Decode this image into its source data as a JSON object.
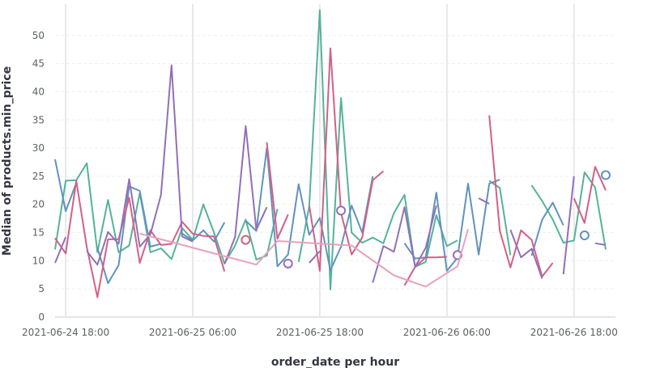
{
  "chart_data": {
    "type": "line",
    "xlabel": "order_date per hour",
    "ylabel": "Median of products.min_price",
    "ylim": [
      0,
      55
    ],
    "yticks": [
      0,
      5,
      10,
      15,
      20,
      25,
      30,
      35,
      40,
      45,
      50
    ],
    "xlim": [
      "2021-06-24 17:00",
      "2021-06-26 21:00"
    ],
    "xticks": [
      {
        "at": "2021-06-24 18:00",
        "label": "2021-06-24 18:00"
      },
      {
        "at": "2021-06-25 06:00",
        "label": "2021-06-25 06:00"
      },
      {
        "at": "2021-06-25 18:00",
        "label": "2021-06-25 18:00"
      },
      {
        "at": "2021-06-26 06:00",
        "label": "2021-06-26 06:00"
      },
      {
        "at": "2021-06-26 18:00",
        "label": "2021-06-26 18:00"
      }
    ],
    "grid": {
      "horizontal": true,
      "vertical": "day-boundaries"
    },
    "legend": "none",
    "series": [
      {
        "color": "#54b399",
        "values": [
          [
            "2021-06-24 17:00",
            12
          ],
          [
            "2021-06-24 18:00",
            24.2
          ],
          [
            "2021-06-24 19:00",
            24.3
          ],
          [
            "2021-06-24 20:00",
            27.3
          ],
          [
            "2021-06-24 21:00",
            11.5
          ],
          [
            "2021-06-24 22:00",
            20.8
          ],
          [
            "2021-06-24 23:00",
            11.5
          ],
          [
            "2021-06-25 00:00",
            12.7
          ],
          [
            "2021-06-25 01:00",
            22
          ],
          [
            "2021-06-25 02:00",
            11.5
          ],
          [
            "2021-06-25 03:00",
            12.2
          ],
          [
            "2021-06-25 04:00",
            10.3
          ],
          [
            "2021-06-25 05:00",
            15.8
          ],
          [
            "2021-06-25 06:00",
            13.7
          ],
          [
            "2021-06-25 07:00",
            20
          ],
          [
            "2021-06-25 08:00",
            15
          ],
          [
            "2021-06-25 09:00",
            9.5
          ],
          [
            "2021-06-25 10:00",
            12.7
          ],
          [
            "2021-06-25 11:00",
            17.3
          ],
          [
            "2021-06-25 12:00",
            10.2
          ],
          [
            "2021-06-25 13:00",
            10.9
          ],
          [
            "2021-06-25 14:00",
            19.2
          ],
          [
            "2021-06-25 15:00",
            null
          ],
          [
            "2021-06-25 16:00",
            9.8
          ],
          [
            "2021-06-25 17:00",
            19.6
          ],
          [
            "2021-06-25 18:00",
            54.5
          ],
          [
            "2021-06-25 19:00",
            4.9
          ],
          [
            "2021-06-25 20:00",
            38.9
          ],
          [
            "2021-06-25 21:00",
            15
          ],
          [
            "2021-06-25 22:00",
            13.2
          ],
          [
            "2021-06-25 23:00",
            14.1
          ],
          [
            "2021-06-26 00:00",
            13.1
          ],
          [
            "2021-06-26 01:00",
            18.5
          ],
          [
            "2021-06-26 02:00",
            21.7
          ],
          [
            "2021-06-26 03:00",
            8.9
          ],
          [
            "2021-06-26 04:00",
            9.8
          ],
          [
            "2021-06-26 05:00",
            18.1
          ],
          [
            "2021-06-26 06:00",
            12.6
          ],
          [
            "2021-06-26 07:00",
            13.6
          ],
          [
            "2021-06-26 08:00",
            null
          ],
          [
            "2021-06-26 09:00",
            null
          ],
          [
            "2021-06-26 10:00",
            24.2
          ],
          [
            "2021-06-26 11:00",
            22.9
          ],
          [
            "2021-06-26 12:00",
            11
          ],
          [
            "2021-06-26 13:00",
            null
          ],
          [
            "2021-06-26 14:00",
            23.4
          ],
          [
            "2021-06-26 15:00",
            20.6
          ],
          [
            "2021-06-26 16:00",
            17.3
          ],
          [
            "2021-06-26 17:00",
            13.2
          ],
          [
            "2021-06-26 18:00",
            13.6
          ],
          [
            "2021-06-26 19:00",
            25.7
          ],
          [
            "2021-06-26 20:00",
            23
          ],
          [
            "2021-06-26 21:00",
            12
          ]
        ]
      },
      {
        "color": "#6092c0",
        "values": [
          [
            "2021-06-24 17:00",
            28
          ],
          [
            "2021-06-24 18:00",
            18.8
          ],
          [
            "2021-06-24 19:00",
            23.8
          ],
          [
            "2021-06-24 20:00",
            null
          ],
          [
            "2021-06-24 21:00",
            12.3
          ],
          [
            "2021-06-24 22:00",
            6
          ],
          [
            "2021-06-24 23:00",
            9.2
          ],
          [
            "2021-06-25 00:00",
            23.2
          ],
          [
            "2021-06-25 01:00",
            22.4
          ],
          [
            "2021-06-25 02:00",
            12.5
          ],
          [
            "2021-06-25 03:00",
            13
          ],
          [
            "2021-06-25 04:00",
            null
          ],
          [
            "2021-06-25 05:00",
            14.8
          ],
          [
            "2021-06-25 06:00",
            13.6
          ],
          [
            "2021-06-25 07:00",
            15.4
          ],
          [
            "2021-06-25 08:00",
            13.4
          ],
          [
            "2021-06-25 09:00",
            16.8
          ],
          [
            "2021-06-25 10:00",
            null
          ],
          [
            "2021-06-25 11:00",
            17.1
          ],
          [
            "2021-06-25 12:00",
            15.3
          ],
          [
            "2021-06-25 13:00",
            30
          ],
          [
            "2021-06-25 14:00",
            9
          ],
          [
            "2021-06-25 15:00",
            11.1
          ],
          [
            "2021-06-25 16:00",
            23.6
          ],
          [
            "2021-06-25 17:00",
            14.6
          ],
          [
            "2021-06-25 18:00",
            17.6
          ],
          [
            "2021-06-25 19:00",
            8.3
          ],
          [
            "2021-06-25 20:00",
            12.5
          ],
          [
            "2021-06-25 21:00",
            19.8
          ],
          [
            "2021-06-25 22:00",
            15
          ],
          [
            "2021-06-25 23:00",
            25
          ],
          [
            "2021-06-26 00:00",
            null
          ],
          [
            "2021-06-26 01:00",
            null
          ],
          [
            "2021-06-26 02:00",
            13.1
          ],
          [
            "2021-06-26 03:00",
            10.4
          ],
          [
            "2021-06-26 04:00",
            10.6
          ],
          [
            "2021-06-26 05:00",
            22.1
          ],
          [
            "2021-06-26 06:00",
            8.2
          ],
          [
            "2021-06-26 07:00",
            10.5
          ],
          [
            "2021-06-26 08:00",
            23.7
          ],
          [
            "2021-06-26 09:00",
            11.1
          ],
          [
            "2021-06-26 10:00",
            23.7
          ],
          [
            "2021-06-26 11:00",
            24.4
          ],
          [
            "2021-06-26 12:00",
            null
          ],
          [
            "2021-06-26 13:00",
            null
          ],
          [
            "2021-06-26 14:00",
            10.9
          ],
          [
            "2021-06-26 15:00",
            17.3
          ],
          [
            "2021-06-26 16:00",
            20.3
          ],
          [
            "2021-06-26 17:00",
            16.3
          ],
          [
            "2021-06-26 18:00",
            null
          ],
          [
            "2021-06-26 19:00",
            14.5
          ],
          [
            "2021-06-26 20:00",
            null
          ],
          [
            "2021-06-26 21:00",
            25.2
          ]
        ]
      },
      {
        "color": "#d36086",
        "values": [
          [
            "2021-06-24 17:00",
            14
          ],
          [
            "2021-06-24 18:00",
            11.3
          ],
          [
            "2021-06-24 19:00",
            24.2
          ],
          [
            "2021-06-24 20:00",
            12.4
          ],
          [
            "2021-06-24 21:00",
            3.5
          ],
          [
            "2021-06-24 22:00",
            13.8
          ],
          [
            "2021-06-24 23:00",
            13.8
          ],
          [
            "2021-06-25 00:00",
            21.2
          ],
          [
            "2021-06-25 01:00",
            9.6
          ],
          [
            "2021-06-25 02:00",
            15.4
          ],
          [
            "2021-06-25 03:00",
            12.8
          ],
          [
            "2021-06-25 04:00",
            13
          ],
          [
            "2021-06-25 05:00",
            16.9
          ],
          [
            "2021-06-25 06:00",
            14.8
          ],
          [
            "2021-06-25 07:00",
            14.4
          ],
          [
            "2021-06-25 08:00",
            14.3
          ],
          [
            "2021-06-25 09:00",
            8.1
          ],
          [
            "2021-06-25 10:00",
            null
          ],
          [
            "2021-06-25 11:00",
            13.7
          ],
          [
            "2021-06-25 12:00",
            null
          ],
          [
            "2021-06-25 13:00",
            31
          ],
          [
            "2021-06-25 14:00",
            13.9
          ],
          [
            "2021-06-25 15:00",
            18.2
          ],
          [
            "2021-06-25 16:00",
            null
          ],
          [
            "2021-06-25 17:00",
            19.8
          ],
          [
            "2021-06-25 18:00",
            8.2
          ],
          [
            "2021-06-25 19:00",
            47.7
          ],
          [
            "2021-06-25 20:00",
            18.5
          ],
          [
            "2021-06-25 21:00",
            11.1
          ],
          [
            "2021-06-25 22:00",
            14.1
          ],
          [
            "2021-06-25 23:00",
            24.3
          ],
          [
            "2021-06-26 00:00",
            25.9
          ],
          [
            "2021-06-26 01:00",
            null
          ],
          [
            "2021-06-26 02:00",
            5.6
          ],
          [
            "2021-06-26 03:00",
            8.9
          ],
          [
            "2021-06-26 04:00",
            10.6
          ],
          [
            "2021-06-26 05:00",
            10.6
          ],
          [
            "2021-06-26 06:00",
            10.7
          ],
          [
            "2021-06-26 07:00",
            null
          ],
          [
            "2021-06-26 08:00",
            null
          ],
          [
            "2021-06-26 09:00",
            null
          ],
          [
            "2021-06-26 10:00",
            35.8
          ],
          [
            "2021-06-26 11:00",
            15.3
          ],
          [
            "2021-06-26 12:00",
            8.8
          ],
          [
            "2021-06-26 13:00",
            15.4
          ],
          [
            "2021-06-26 14:00",
            13.7
          ],
          [
            "2021-06-26 15:00",
            7.2
          ],
          [
            "2021-06-26 16:00",
            9.6
          ],
          [
            "2021-06-26 17:00",
            null
          ],
          [
            "2021-06-26 18:00",
            21.1
          ],
          [
            "2021-06-26 19:00",
            16.7
          ],
          [
            "2021-06-26 20:00",
            26.7
          ],
          [
            "2021-06-26 21:00",
            22.5
          ]
        ]
      },
      {
        "color": "#9170b8",
        "values": [
          [
            "2021-06-24 17:00",
            9.6
          ],
          [
            "2021-06-24 18:00",
            14.2
          ],
          [
            "2021-06-24 19:00",
            null
          ],
          [
            "2021-06-24 20:00",
            11.7
          ],
          [
            "2021-06-24 21:00",
            9.3
          ],
          [
            "2021-06-24 22:00",
            15.1
          ],
          [
            "2021-06-24 23:00",
            13
          ],
          [
            "2021-06-25 00:00",
            24.5
          ],
          [
            "2021-06-25 01:00",
            12.5
          ],
          [
            "2021-06-25 02:00",
            14.7
          ],
          [
            "2021-06-25 03:00",
            21.7
          ],
          [
            "2021-06-25 04:00",
            44.7
          ],
          [
            "2021-06-25 05:00",
            14.3
          ],
          [
            "2021-06-25 06:00",
            13.4
          ],
          [
            "2021-06-25 07:00",
            null
          ],
          [
            "2021-06-25 08:00",
            null
          ],
          [
            "2021-06-25 09:00",
            9.4
          ],
          [
            "2021-06-25 10:00",
            14.2
          ],
          [
            "2021-06-25 11:00",
            33.9
          ],
          [
            "2021-06-25 12:00",
            15.5
          ],
          [
            "2021-06-25 13:00",
            19.5
          ],
          [
            "2021-06-25 14:00",
            null
          ],
          [
            "2021-06-25 15:00",
            9.5
          ],
          [
            "2021-06-25 16:00",
            null
          ],
          [
            "2021-06-25 17:00",
            9.6
          ],
          [
            "2021-06-25 18:00",
            11.7
          ],
          [
            "2021-06-25 19:00",
            null
          ],
          [
            "2021-06-25 20:00",
            18.9
          ],
          [
            "2021-06-25 21:00",
            null
          ],
          [
            "2021-06-25 22:00",
            null
          ],
          [
            "2021-06-25 23:00",
            6.1
          ],
          [
            "2021-06-26 00:00",
            12.6
          ],
          [
            "2021-06-26 01:00",
            11.6
          ],
          [
            "2021-06-26 02:00",
            19.5
          ],
          [
            "2021-06-26 03:00",
            8.9
          ],
          [
            "2021-06-26 04:00",
            12.3
          ],
          [
            "2021-06-26 05:00",
            19.8
          ],
          [
            "2021-06-26 06:00",
            null
          ],
          [
            "2021-06-26 07:00",
            11
          ],
          [
            "2021-06-26 08:00",
            null
          ],
          [
            "2021-06-26 09:00",
            21.1
          ],
          [
            "2021-06-26 10:00",
            20.1
          ],
          [
            "2021-06-26 11:00",
            null
          ],
          [
            "2021-06-26 12:00",
            15.5
          ],
          [
            "2021-06-26 13:00",
            10.6
          ],
          [
            "2021-06-26 14:00",
            12.1
          ],
          [
            "2021-06-26 15:00",
            6.8
          ],
          [
            "2021-06-26 16:00",
            null
          ],
          [
            "2021-06-26 17:00",
            7.6
          ],
          [
            "2021-06-26 18:00",
            25
          ],
          [
            "2021-06-26 19:00",
            null
          ],
          [
            "2021-06-26 20:00",
            13.1
          ],
          [
            "2021-06-26 21:00",
            12.8
          ]
        ]
      },
      {
        "color": "#d6bf57",
        "values": []
      },
      {
        "color": "#e7a1bc",
        "values": [
          [
            "2021-06-25 01:00",
            14.8
          ],
          [
            "2021-06-25 12:00",
            9.3
          ],
          [
            "2021-06-25 14:00",
            13.5
          ],
          [
            "2021-06-25 21:00",
            12.7
          ],
          [
            "2021-06-26 01:00",
            7.4
          ],
          [
            "2021-06-26 04:00",
            5.4
          ],
          [
            "2021-06-26 07:00",
            9
          ],
          [
            "2021-06-26 08:00",
            15.6
          ]
        ]
      }
    ]
  }
}
